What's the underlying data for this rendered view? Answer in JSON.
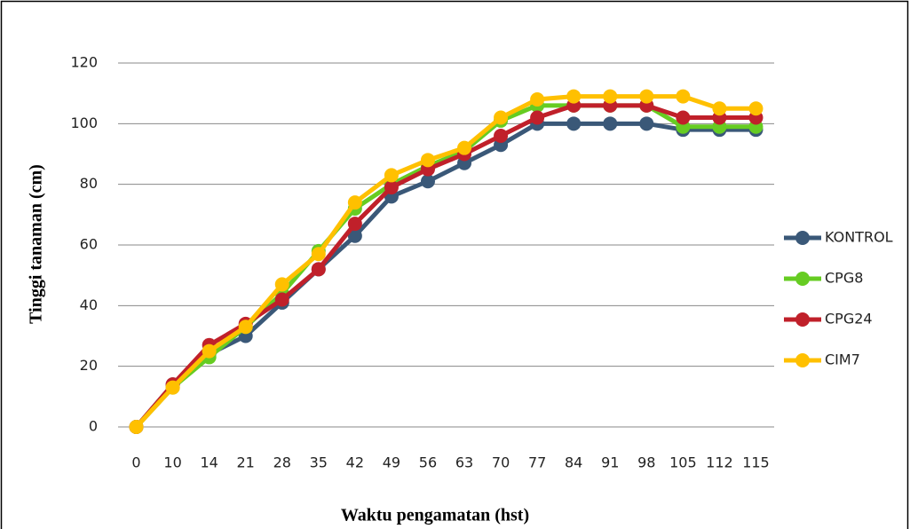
{
  "chart_data": {
    "type": "line",
    "y_label": "Tinggi tanaman (cm)",
    "x_label": "Waktu pengamatan (hst)",
    "categories": [
      "0",
      "10",
      "14",
      "21",
      "28",
      "35",
      "42",
      "49",
      "56",
      "63",
      "70",
      "77",
      "84",
      "91",
      "98",
      "105",
      "112",
      "115"
    ],
    "series": [
      {
        "name": "KONTROL",
        "color": "#3a5878",
        "values": [
          0,
          14,
          24,
          30,
          41,
          52,
          63,
          76,
          81,
          87,
          93,
          100,
          100,
          100,
          100,
          98,
          98,
          98
        ]
      },
      {
        "name": "CPG8",
        "color": "#66cc22",
        "values": [
          0,
          13,
          23,
          33,
          44,
          58,
          72,
          80,
          86,
          91,
          101,
          106,
          106,
          106,
          106,
          99,
          99,
          99
        ]
      },
      {
        "name": "CPG24",
        "color": "#c0202a",
        "values": [
          0,
          14,
          27,
          34,
          42,
          52,
          67,
          79,
          85,
          90,
          96,
          102,
          106,
          106,
          106,
          102,
          102,
          102
        ]
      },
      {
        "name": "CIM7",
        "color": "#ffc000",
        "values": [
          0,
          13,
          25,
          33,
          47,
          57,
          74,
          83,
          88,
          92,
          102,
          108,
          109,
          109,
          109,
          109,
          105,
          105
        ]
      }
    ],
    "ylim": [
      0,
      120
    ],
    "yticks": [
      0,
      20,
      40,
      60,
      80,
      100,
      120
    ],
    "grid": true,
    "legend": "right"
  }
}
